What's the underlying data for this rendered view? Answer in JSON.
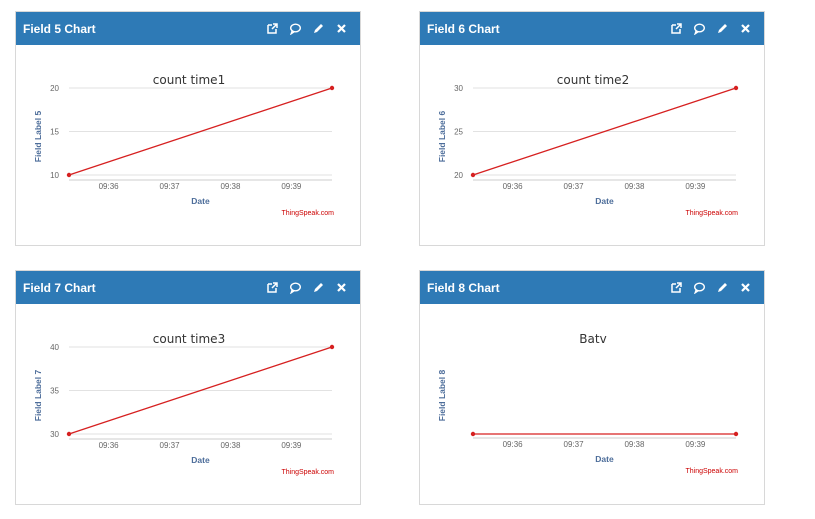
{
  "header": {
    "icons": [
      "external-link-icon",
      "comment-icon",
      "pencil-icon",
      "close-icon"
    ]
  },
  "colors": {
    "header_bg": "#2e7ab6",
    "line": "#d62020",
    "grid": "#e2e2e2",
    "axis_label": "#4d6d9a",
    "credit": "#cc0000"
  },
  "credit": "ThingSpeak.com",
  "charts": [
    {
      "card_title": "Field 5 Chart",
      "chart_data": {
        "type": "line",
        "title": "count time1",
        "xlabel": "Date",
        "ylabel": "Field Label 5",
        "x": [
          "09:35:21",
          "09:39:40"
        ],
        "series": [
          {
            "values": [
              10,
              20
            ]
          }
        ],
        "xticks": [
          "09:36",
          "09:37",
          "09:38",
          "09:39"
        ],
        "yticks": [
          10,
          15,
          20
        ],
        "ylim": [
          10,
          20
        ],
        "xlim": [
          "09:35:21",
          "09:39:40"
        ],
        "grid": true,
        "show_yticks": true
      }
    },
    {
      "card_title": "Field 6 Chart",
      "chart_data": {
        "type": "line",
        "title": "count time2",
        "xlabel": "Date",
        "ylabel": "Field Label 6",
        "x": [
          "09:35:21",
          "09:39:40"
        ],
        "series": [
          {
            "values": [
              20,
              30
            ]
          }
        ],
        "xticks": [
          "09:36",
          "09:37",
          "09:38",
          "09:39"
        ],
        "yticks": [
          20,
          25,
          30
        ],
        "ylim": [
          20,
          30
        ],
        "xlim": [
          "09:35:21",
          "09:39:40"
        ],
        "grid": true,
        "show_yticks": true
      }
    },
    {
      "card_title": "Field 7 Chart",
      "chart_data": {
        "type": "line",
        "title": "count time3",
        "xlabel": "Date",
        "ylabel": "Field Label 7",
        "x": [
          "09:35:21",
          "09:39:40"
        ],
        "series": [
          {
            "values": [
              30,
              40
            ]
          }
        ],
        "xticks": [
          "09:36",
          "09:37",
          "09:38",
          "09:39"
        ],
        "yticks": [
          30,
          35,
          40
        ],
        "ylim": [
          30,
          40
        ],
        "xlim": [
          "09:35:21",
          "09:39:40"
        ],
        "grid": true,
        "show_yticks": true
      }
    },
    {
      "card_title": "Field 8 Chart",
      "chart_data": {
        "type": "line",
        "title": "Batv",
        "xlabel": "Date",
        "ylabel": "Field Label 8",
        "x": [
          "09:35:21",
          "09:39:40"
        ],
        "series": [
          {
            "values": [
              0,
              0
            ]
          }
        ],
        "xticks": [
          "09:36",
          "09:37",
          "09:38",
          "09:39"
        ],
        "yticks": [],
        "ylim": [
          0,
          1
        ],
        "xlim": [
          "09:35:21",
          "09:39:40"
        ],
        "grid": false,
        "show_yticks": false
      }
    }
  ]
}
